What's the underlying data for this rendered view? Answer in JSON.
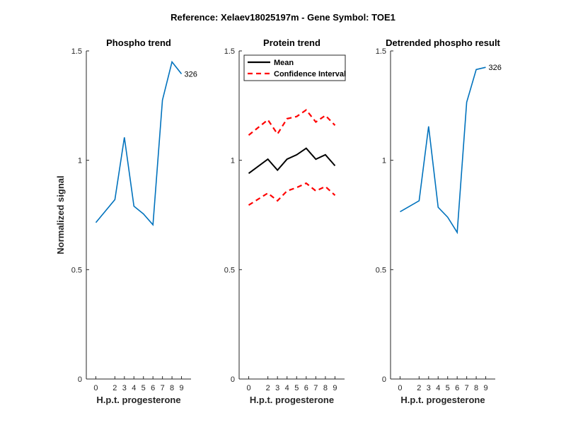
{
  "figure_title": "Reference:  Xelaev18025197m - Gene Symbol:  TOE1",
  "chart_data": [
    {
      "type": "line",
      "title": "Phospho trend",
      "xlabel": "H.p.t. progesterone",
      "ylabel": "Normalized signal",
      "x": [
        0,
        2,
        3,
        4,
        5,
        6,
        7,
        8,
        9
      ],
      "xticks": [
        "0",
        "2",
        "3",
        "4",
        "5",
        "6",
        "7",
        "8",
        "9"
      ],
      "ylim": [
        0,
        1.5
      ],
      "yticks": [
        "0",
        "0.5",
        "1",
        "1.5"
      ],
      "series": [
        {
          "color": "#0072bd",
          "values": [
            0.715,
            0.82,
            1.105,
            0.79,
            0.755,
            0.705,
            1.275,
            1.45,
            1.395
          ]
        }
      ],
      "annotations": [
        {
          "text": "326",
          "at_index": 8
        }
      ]
    },
    {
      "type": "line",
      "title": "Protein trend",
      "xlabel": "H.p.t. progesterone",
      "ylabel": "",
      "x": [
        0,
        2,
        3,
        4,
        5,
        6,
        7,
        8,
        9
      ],
      "xticks": [
        "0",
        "2",
        "3",
        "4",
        "5",
        "6",
        "7",
        "8",
        "9"
      ],
      "ylim": [
        0,
        1.5
      ],
      "yticks": [
        "0",
        "0.5",
        "1",
        "1.5"
      ],
      "legend": {
        "placement": "top-left",
        "entries": [
          "Mean",
          "Confidence Interval"
        ]
      },
      "series": [
        {
          "name": "Mean",
          "color": "#000000",
          "style": "solid",
          "values": [
            0.94,
            1.005,
            0.955,
            1.005,
            1.025,
            1.055,
            1.005,
            1.025,
            0.975
          ]
        },
        {
          "name": "Confidence Interval",
          "color": "#ff0000",
          "style": "dashed",
          "values": [
            1.115,
            1.185,
            1.12,
            1.19,
            1.2,
            1.23,
            1.175,
            1.205,
            1.16
          ]
        },
        {
          "color": "#ff0000",
          "style": "dashed",
          "values": [
            0.795,
            0.85,
            0.815,
            0.86,
            0.875,
            0.895,
            0.86,
            0.88,
            0.84
          ]
        }
      ]
    },
    {
      "type": "line",
      "title": "Detrended phospho result",
      "xlabel": "H.p.t. progesterone",
      "ylabel": "",
      "x": [
        0,
        2,
        3,
        4,
        5,
        6,
        7,
        8,
        9
      ],
      "xticks": [
        "0",
        "2",
        "3",
        "4",
        "5",
        "6",
        "7",
        "8",
        "9"
      ],
      "ylim": [
        0,
        1.5
      ],
      "yticks": [
        "0",
        "0.5",
        "1",
        "1.5"
      ],
      "series": [
        {
          "color": "#0072bd",
          "values": [
            0.765,
            0.815,
            1.155,
            0.785,
            0.74,
            0.67,
            1.265,
            1.415,
            1.425
          ]
        }
      ],
      "annotations": [
        {
          "text": "326",
          "at_index": 8
        }
      ]
    }
  ]
}
